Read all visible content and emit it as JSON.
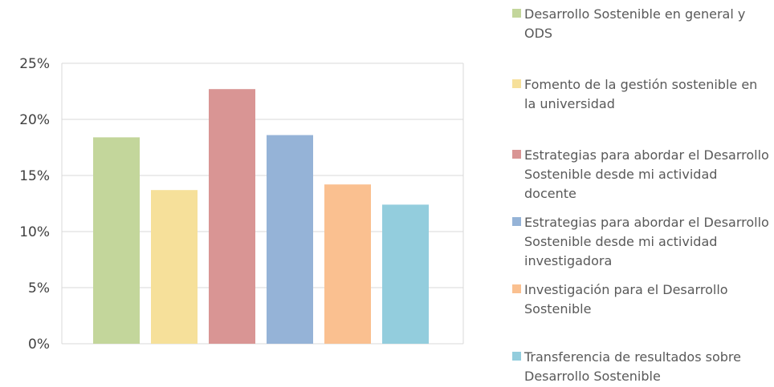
{
  "chart_data": {
    "type": "bar",
    "title": "",
    "xlabel": "",
    "ylabel": "",
    "ylim": [
      0,
      0.25
    ],
    "yticks": [
      "0%",
      "5%",
      "10%",
      "15%",
      "20%",
      "25%"
    ],
    "grid": true,
    "legend_position": "right",
    "series": [
      {
        "name": "Desarrollo Sostenible en general y ODS",
        "value": 0.184,
        "color": "#c3d69b"
      },
      {
        "name": "Fomento de la gestión sostenible en la universidad",
        "value": 0.137,
        "color": "#f6e09a"
      },
      {
        "name": "Estrategias para abordar el Desarrollo Sostenible desde mi actividad docente",
        "value": 0.227,
        "color": "#d99594"
      },
      {
        "name": "Estrategias para abordar el Desarrollo Sostenible desde mi actividad investigadora",
        "value": 0.186,
        "color": "#95b3d7"
      },
      {
        "name": "Investigación para el Desarrollo Sostenible",
        "value": 0.142,
        "color": "#fac090"
      },
      {
        "name": "Transferencia de resultados sobre Desarrollo Sostenible",
        "value": 0.124,
        "color": "#93cddd"
      }
    ]
  }
}
